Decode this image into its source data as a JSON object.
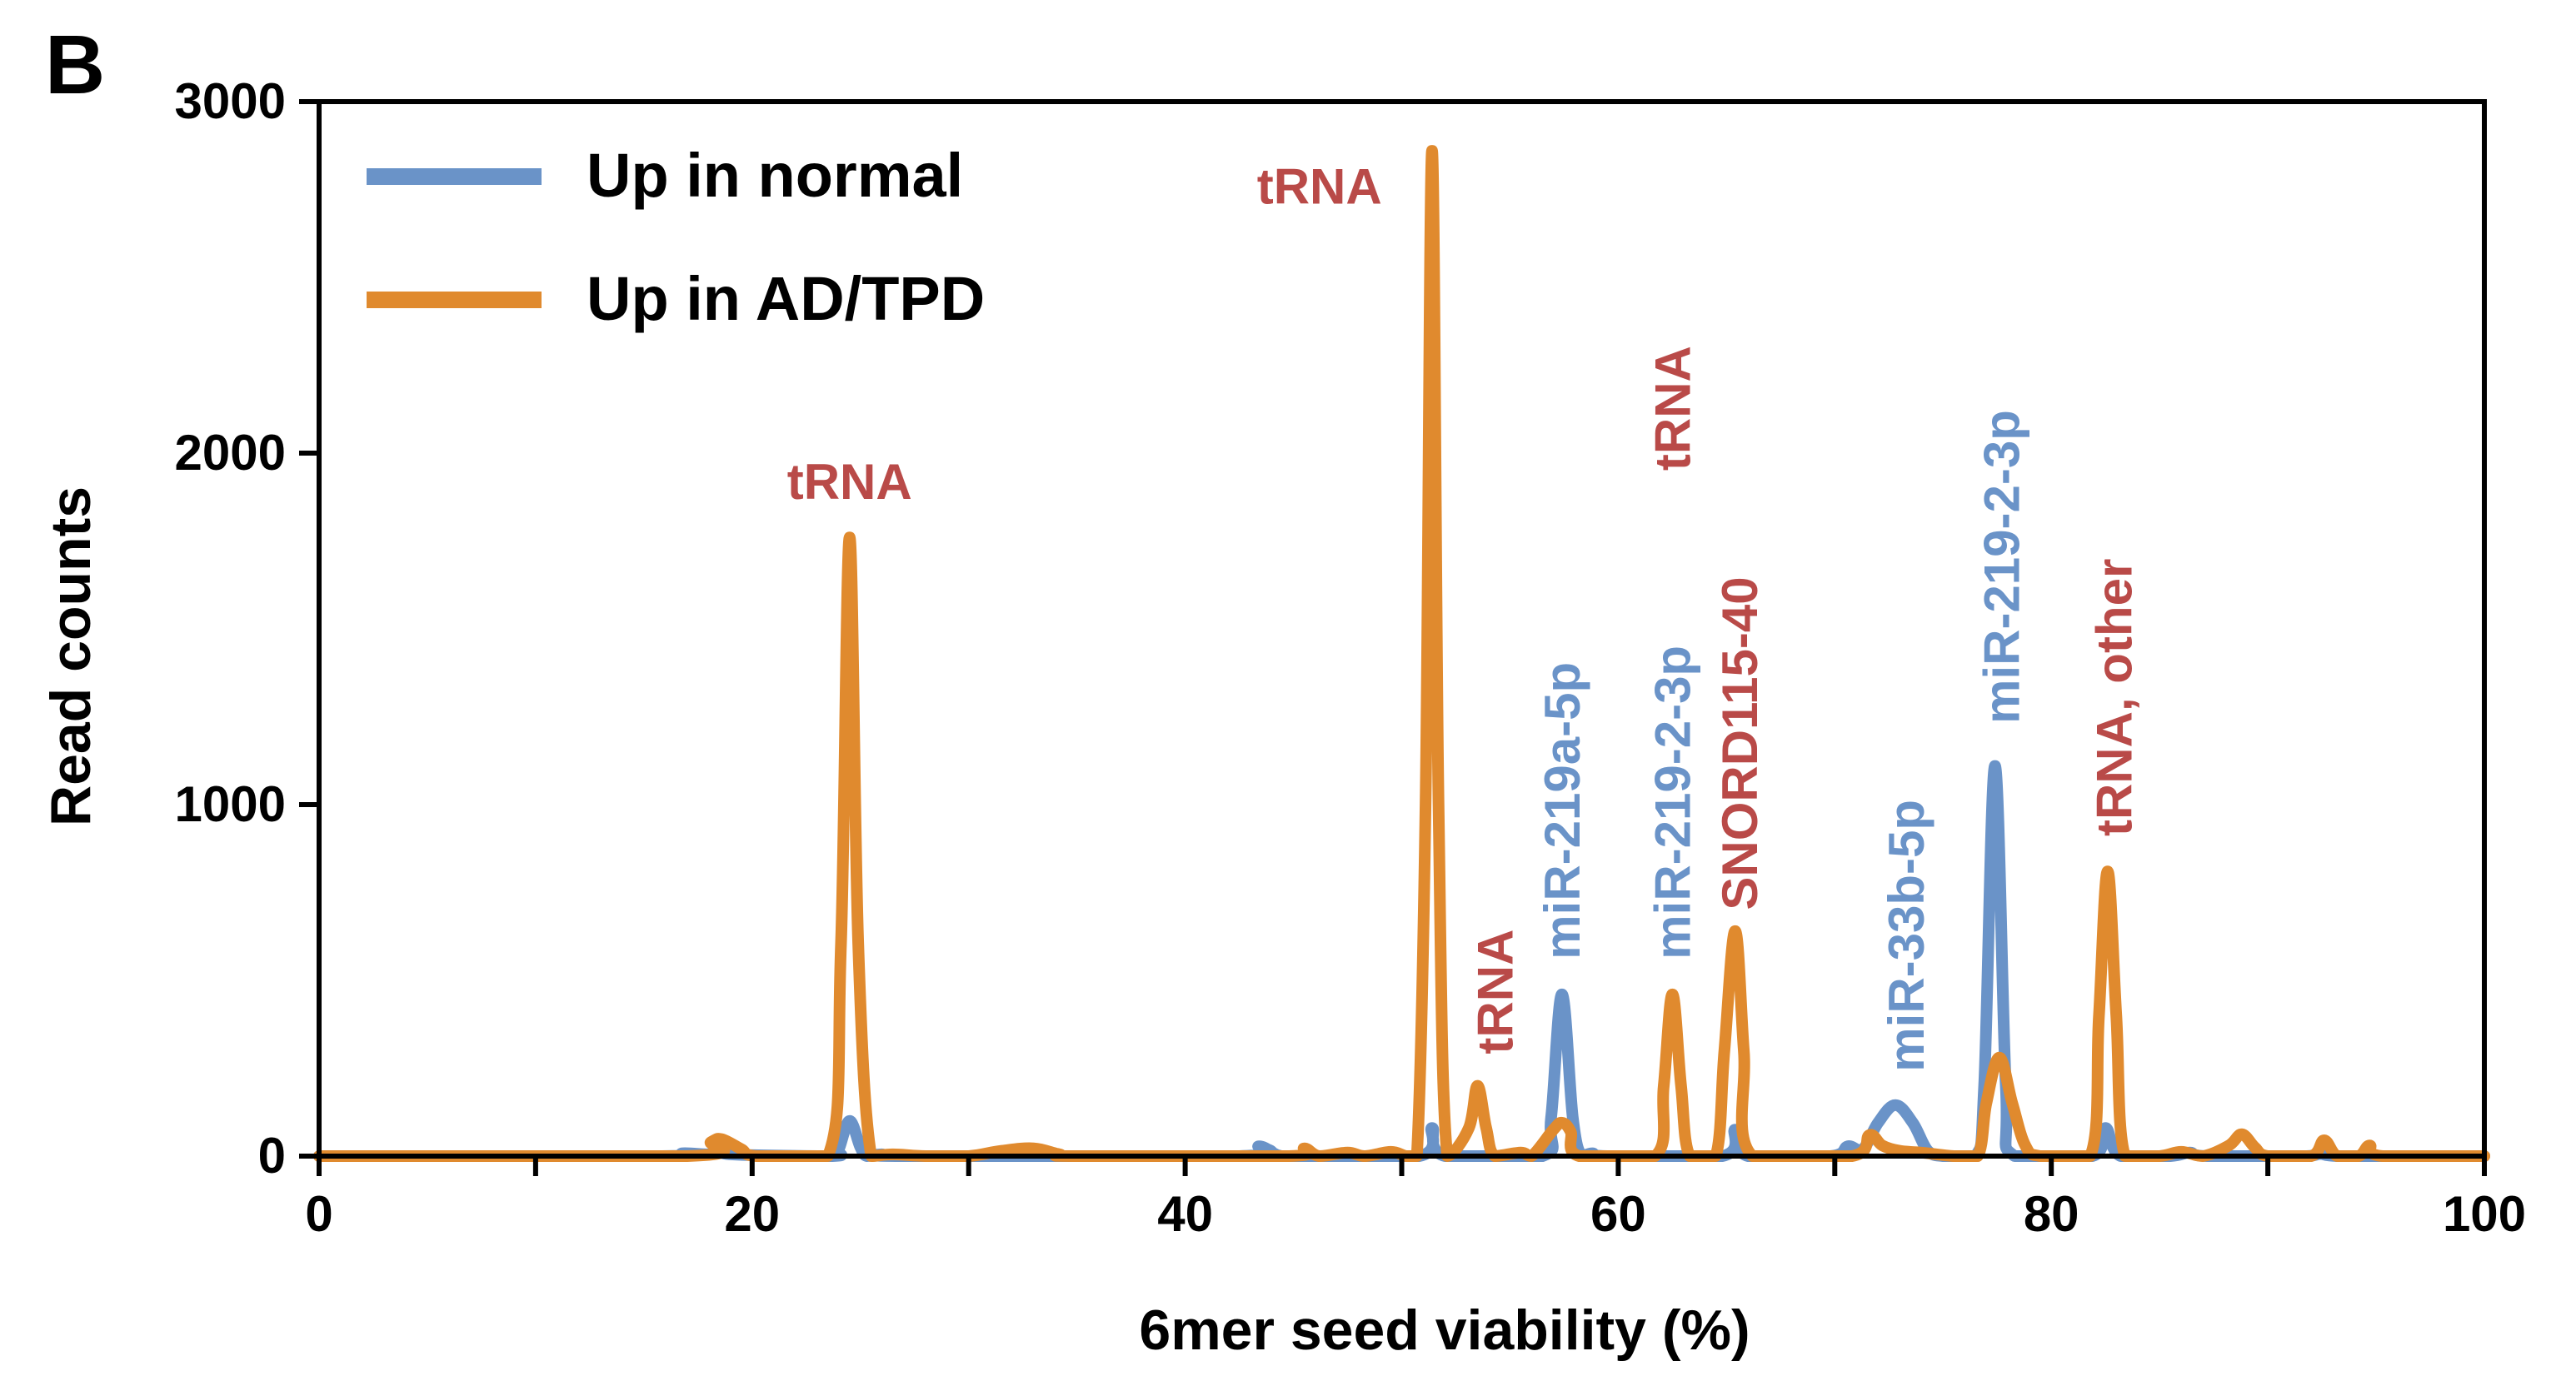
{
  "panel_label": "B",
  "chart_data": {
    "type": "line",
    "xlabel": "6mer seed viability (%)",
    "ylabel": "Read counts",
    "xlim": [
      0,
      100
    ],
    "ylim": [
      0,
      3000
    ],
    "xticks": [
      0,
      20,
      40,
      60,
      80,
      100
    ],
    "xminorticks": [
      10,
      30,
      50,
      70,
      90
    ],
    "yticks": [
      0,
      1000,
      2000,
      3000
    ],
    "grid": false,
    "legend_position": "top-left",
    "series": [
      {
        "name": "Up in normal",
        "color": "#6a93c8",
        "points": [
          [
            0,
            0
          ],
          [
            15.5,
            0
          ],
          [
            16.8,
            8
          ],
          [
            18,
            5
          ],
          [
            18.5,
            12
          ],
          [
            19.3,
            4
          ],
          [
            23.7,
            0
          ],
          [
            24,
            20
          ],
          [
            24.5,
            100
          ],
          [
            25,
            25
          ],
          [
            25.3,
            0
          ],
          [
            26,
            5
          ],
          [
            27,
            0
          ],
          [
            42.5,
            0
          ],
          [
            43.4,
            28
          ],
          [
            44.3,
            2
          ],
          [
            45,
            0
          ],
          [
            50.8,
            0
          ],
          [
            51.4,
            80
          ],
          [
            52,
            0
          ],
          [
            56.5,
            0
          ],
          [
            56.9,
            110
          ],
          [
            57.4,
            460
          ],
          [
            57.9,
            110
          ],
          [
            58.3,
            0
          ],
          [
            58.8,
            8
          ],
          [
            59.5,
            0
          ],
          [
            64.8,
            0
          ],
          [
            65.4,
            75
          ],
          [
            66,
            0
          ],
          [
            69.8,
            0
          ],
          [
            70.6,
            28
          ],
          [
            71.3,
            20
          ],
          [
            72,
            95
          ],
          [
            72.8,
            145
          ],
          [
            73.6,
            95
          ],
          [
            74.3,
            15
          ],
          [
            75,
            0
          ],
          [
            76.5,
            0
          ],
          [
            76.9,
            200
          ],
          [
            77.4,
            1110
          ],
          [
            77.9,
            200
          ],
          [
            78.3,
            0
          ],
          [
            81.9,
            0
          ],
          [
            82.5,
            80
          ],
          [
            83.2,
            0
          ],
          [
            85.5,
            0
          ],
          [
            86.4,
            10
          ],
          [
            87.2,
            0
          ],
          [
            91.8,
            0
          ],
          [
            92.5,
            20
          ],
          [
            93.2,
            0
          ],
          [
            100,
            0
          ]
        ]
      },
      {
        "name": "Up in AD/TPD",
        "color": "#e08a2e",
        "points": [
          [
            0,
            0
          ],
          [
            17,
            0
          ],
          [
            18.1,
            40
          ],
          [
            18.6,
            48
          ],
          [
            19.5,
            20
          ],
          [
            20.2,
            0
          ],
          [
            23.5,
            0
          ],
          [
            24.1,
            600
          ],
          [
            24.5,
            1760
          ],
          [
            24.9,
            600
          ],
          [
            25.5,
            0
          ],
          [
            26.5,
            5
          ],
          [
            28,
            0
          ],
          [
            30,
            0
          ],
          [
            31.5,
            15
          ],
          [
            33,
            22
          ],
          [
            34.2,
            5
          ],
          [
            35,
            0
          ],
          [
            44.8,
            0
          ],
          [
            45.5,
            22
          ],
          [
            46.2,
            0
          ],
          [
            47.5,
            10
          ],
          [
            48.3,
            0
          ],
          [
            49.5,
            12
          ],
          [
            50.2,
            0
          ],
          [
            50.7,
            0
          ],
          [
            51.1,
            1000
          ],
          [
            51.4,
            2860
          ],
          [
            51.7,
            1000
          ],
          [
            52.1,
            0
          ],
          [
            53.1,
            80
          ],
          [
            53.5,
            200
          ],
          [
            53.9,
            80
          ],
          [
            54.3,
            0
          ],
          [
            55.5,
            10
          ],
          [
            56,
            0
          ],
          [
            57,
            75
          ],
          [
            57.4,
            95
          ],
          [
            57.8,
            70
          ],
          [
            58.2,
            0
          ],
          [
            61.7,
            0
          ],
          [
            62.1,
            200
          ],
          [
            62.5,
            460
          ],
          [
            62.9,
            200
          ],
          [
            63.3,
            0
          ],
          [
            64.5,
            0
          ],
          [
            64.9,
            300
          ],
          [
            65.4,
            640
          ],
          [
            65.8,
            300
          ],
          [
            66.2,
            0
          ],
          [
            70.8,
            0
          ],
          [
            71.6,
            60
          ],
          [
            72.2,
            30
          ],
          [
            73,
            15
          ],
          [
            74,
            10
          ],
          [
            75.5,
            0
          ],
          [
            76.6,
            0
          ],
          [
            77,
            150
          ],
          [
            77.6,
            280
          ],
          [
            78.2,
            150
          ],
          [
            78.8,
            30
          ],
          [
            79.5,
            0
          ],
          [
            81.8,
            0
          ],
          [
            82.2,
            400
          ],
          [
            82.6,
            810
          ],
          [
            83,
            400
          ],
          [
            83.4,
            0
          ],
          [
            85,
            0
          ],
          [
            86,
            12
          ],
          [
            87,
            0
          ],
          [
            88.2,
            30
          ],
          [
            88.8,
            62
          ],
          [
            89.4,
            25
          ],
          [
            90,
            0
          ],
          [
            92,
            0
          ],
          [
            92.6,
            45
          ],
          [
            93.2,
            0
          ],
          [
            94.2,
            0
          ],
          [
            94.7,
            30
          ],
          [
            95.3,
            0
          ],
          [
            100,
            0
          ]
        ]
      }
    ],
    "annotations": [
      {
        "text": "tRNA",
        "x": 24.5,
        "y": 1870,
        "color": "#b94a48",
        "rotate": false
      },
      {
        "text": "tRNA",
        "x": 46.2,
        "y": 2710,
        "color": "#b94a48",
        "rotate": false
      },
      {
        "text": "tRNA",
        "x": 54.3,
        "y": 290,
        "color": "#b94a48",
        "rotate": true
      },
      {
        "text": "miR-219a-5p",
        "x": 57.4,
        "y": 560,
        "color": "#6a93c8",
        "rotate": true
      },
      {
        "text": "miR-219-2-3p",
        "x": 62.5,
        "y": 560,
        "color": "#6a93c8",
        "rotate": true
      },
      {
        "text": "tRNA",
        "x": 62.5,
        "y": 1950,
        "color": "#b94a48",
        "rotate": true
      },
      {
        "text": "SNORD115-40",
        "x": 65.6,
        "y": 700,
        "color": "#b94a48",
        "rotate": true
      },
      {
        "text": "miR-33b-5p",
        "x": 73.3,
        "y": 240,
        "color": "#6a93c8",
        "rotate": true
      },
      {
        "text": "miR-219-2-3p",
        "x": 77.7,
        "y": 1230,
        "color": "#6a93c8",
        "rotate": true
      },
      {
        "text": "tRNA, other",
        "x": 82.9,
        "y": 910,
        "color": "#b94a48",
        "rotate": true
      }
    ]
  }
}
